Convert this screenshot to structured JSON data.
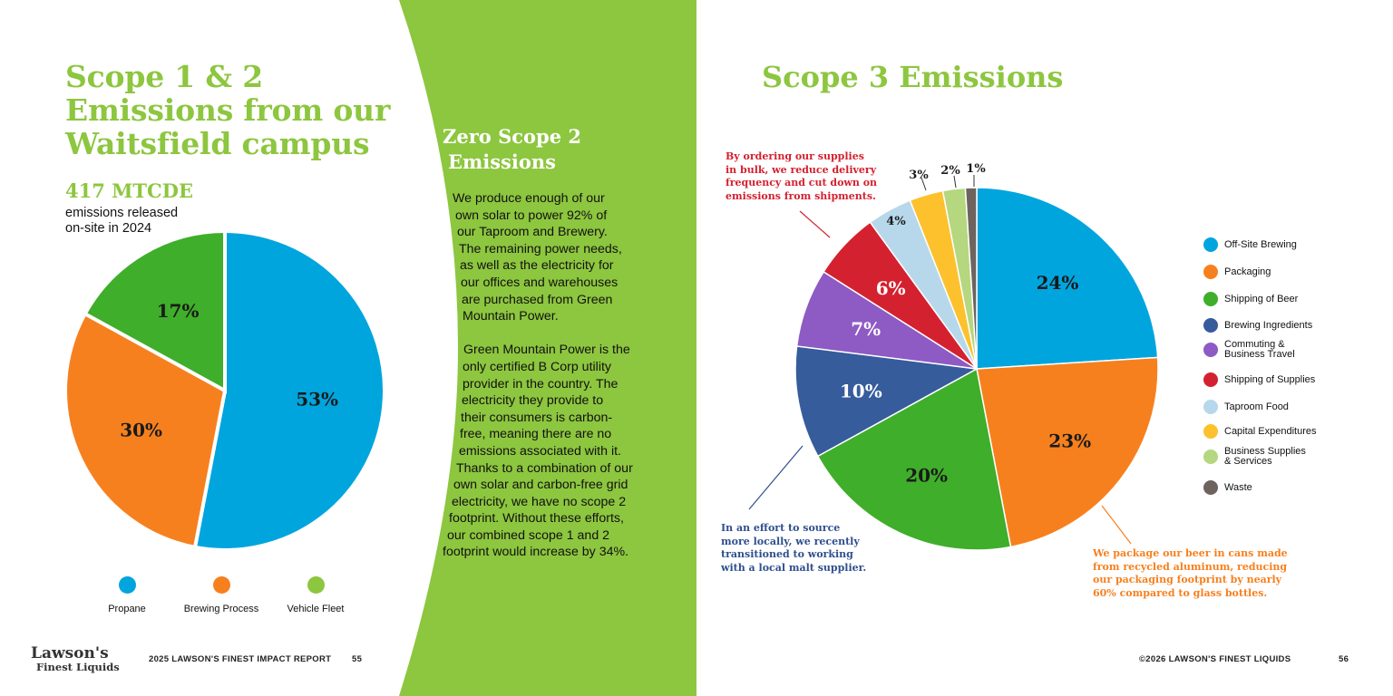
{
  "left": {
    "title_lines": [
      "Scope 1 & 2",
      "Emissions from our",
      "Waitsfield campus"
    ],
    "metric": "417 MTCDE",
    "metric_sub_lines": [
      "emissions released",
      "on-site in 2024"
    ]
  },
  "middle": {
    "title_lines": [
      "Zero Scope 2",
      "Emissions"
    ],
    "para1_lines": [
      "We produce enough of our",
      "own solar to power 92% of",
      "our Taproom and Brewery.",
      "The remaining power needs,",
      "as well as the electricity for",
      "our offices and warehouses",
      "are purchased from Green",
      "Mountain Power."
    ],
    "para2_lines": [
      "Green Mountain Power is the",
      "only certified B Corp utility",
      "provider in the country. The",
      "electricity they provide to",
      "their consumers is carbon-",
      "free, meaning there are no",
      "emissions associated with it.",
      "Thanks to a combination of our",
      "own solar and carbon-free grid",
      "electricity, we have no scope 2",
      "footprint. Without these efforts,",
      "our combined scope 1 and 2",
      "footprint would increase by 34%."
    ]
  },
  "right": {
    "title": "Scope 3 Emissions",
    "note_red_lines": [
      "By ordering our supplies",
      "in bulk, we reduce delivery",
      "frequency and cut down on",
      "emissions from shipments."
    ],
    "note_blue_lines": [
      "In an effort to source",
      "more locally, we recently",
      "transitioned to working",
      "with a local malt supplier."
    ],
    "note_orange_lines": [
      "We package our beer in cans made",
      "from recycled aluminum, reducing",
      "our packaging footprint by nearly",
      "60% compared to glass bottles."
    ]
  },
  "footer": {
    "logo_line1": "Lawson's",
    "logo_line2": "Finest Liquids",
    "report": "2025 LAWSON'S FINEST IMPACT REPORT",
    "page_left": "55",
    "copyright": "©2026 LAWSON'S FINEST LIQUIDS",
    "page_right": "56"
  },
  "colors": {
    "brand_green": "#8dc63f",
    "panel_green": "#8dc63f"
  },
  "chart_data": [
    {
      "type": "pie",
      "title": "",
      "labels": [
        "Propane",
        "Brewing Process",
        "Vehicle Fleet"
      ],
      "values": [
        53,
        30,
        17
      ],
      "value_labels": [
        "53%",
        "30%",
        "17%"
      ],
      "colors": [
        "#00a5de",
        "#f7801e",
        "#3fae2a"
      ],
      "legend_position": "bottom"
    },
    {
      "type": "pie",
      "title": "",
      "labels": [
        "Off-Site Brewing",
        "Packaging",
        "Shipping of Beer",
        "Brewing Ingredients",
        "Commuting & Business Travel",
        "Shipping of Supplies",
        "Taproom Food",
        "Capital Expenditures",
        "Business Supplies & Services",
        "Waste"
      ],
      "values": [
        24,
        23,
        20,
        10,
        7,
        6,
        4,
        3,
        2,
        1
      ],
      "value_labels": [
        "24%",
        "23%",
        "20%",
        "10%",
        "7%",
        "6%",
        "4%",
        "3%",
        "2%",
        "1%"
      ],
      "colors": [
        "#00a5de",
        "#f7801e",
        "#3fae2a",
        "#365c9c",
        "#8e5ac4",
        "#d4212f",
        "#b7d8eb",
        "#fcc12d",
        "#b5d77f",
        "#6e635e"
      ],
      "legend_labels": [
        [
          "Off-Site Brewing"
        ],
        [
          "Packaging"
        ],
        [
          "Shipping of Beer"
        ],
        [
          "Brewing Ingredients"
        ],
        [
          "Commuting &",
          "Business Travel"
        ],
        [
          "Shipping of Supplies"
        ],
        [
          "Taproom Food"
        ],
        [
          "Capital Expenditures"
        ],
        [
          "Business Supplies",
          "& Services"
        ],
        [
          "Waste"
        ]
      ],
      "legend_position": "right"
    }
  ]
}
